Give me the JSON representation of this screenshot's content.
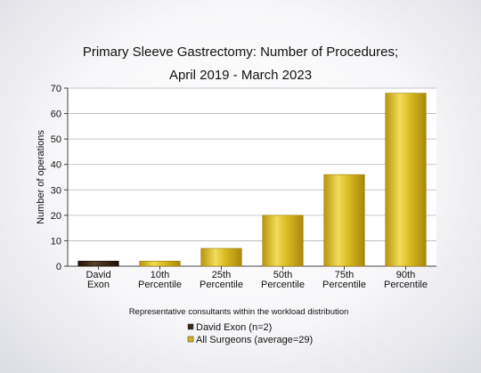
{
  "chart_data": {
    "type": "bar",
    "title_lines": [
      "Primary Sleeve Gastrectomy: Number of Procedures;",
      "April 2019 - March 2023"
    ],
    "ylabel": "Number of operations",
    "xlabel": "Representative consultants within the workload distribution",
    "ylim": [
      0,
      70
    ],
    "yticks": [
      0,
      10,
      20,
      30,
      40,
      50,
      60,
      70
    ],
    "grid": true,
    "categories": [
      [
        "David",
        "Exon"
      ],
      [
        "10th",
        "Percentile"
      ],
      [
        "25th",
        "Percentile"
      ],
      [
        "50th",
        "Percentile"
      ],
      [
        "75th",
        "Percentile"
      ],
      [
        "90th",
        "Percentile"
      ]
    ],
    "values": [
      2,
      2,
      7,
      20,
      36,
      68
    ],
    "bar_series": [
      0,
      1,
      1,
      1,
      1,
      1
    ],
    "series": [
      {
        "name": "David Exon (n=2)",
        "color": "#3a2a1a"
      },
      {
        "name": "All Surgeons (average=29)",
        "color": "#d4b41a"
      }
    ],
    "legend_position": "bottom"
  }
}
